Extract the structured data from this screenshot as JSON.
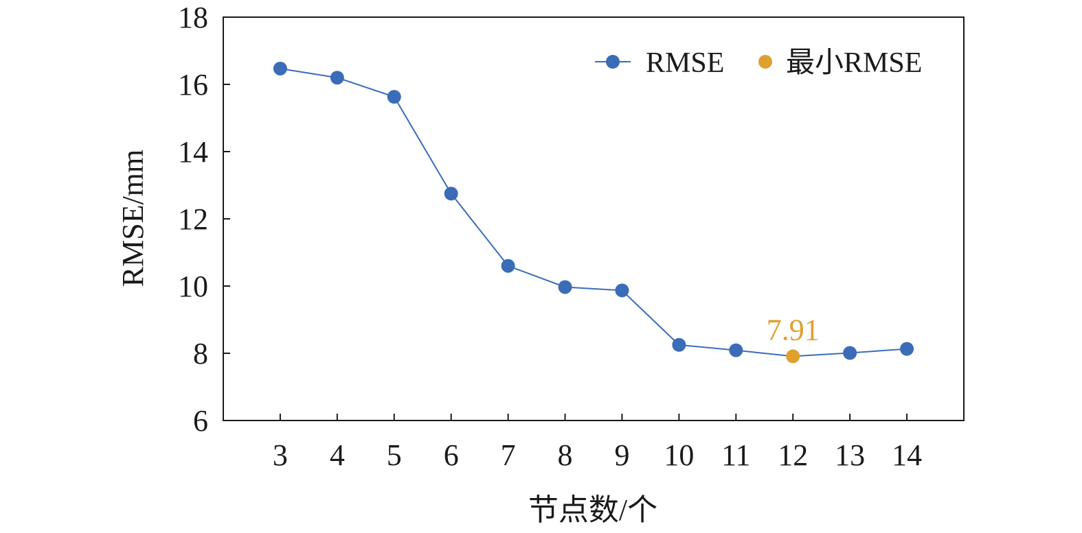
{
  "chart_data": {
    "type": "line",
    "title": "",
    "xlabel": "节点数/个",
    "ylabel": "RMSE/mm",
    "x": [
      3,
      4,
      5,
      6,
      7,
      8,
      9,
      10,
      11,
      12,
      13,
      14
    ],
    "ylim": [
      6,
      18
    ],
    "yticks": [
      6,
      8,
      10,
      12,
      14,
      16,
      18
    ],
    "grid": false,
    "legend_position": "top-right",
    "series": [
      {
        "name": "RMSE",
        "color": "#3a6cb8",
        "values": [
          16.47,
          16.2,
          15.63,
          12.75,
          10.6,
          9.97,
          9.87,
          8.25,
          8.09,
          7.91,
          8.01,
          8.13
        ]
      }
    ],
    "highlight": {
      "name": "最小RMSE",
      "x": 12,
      "y": 7.91,
      "label": "7.91",
      "color": "#e0a030"
    }
  }
}
